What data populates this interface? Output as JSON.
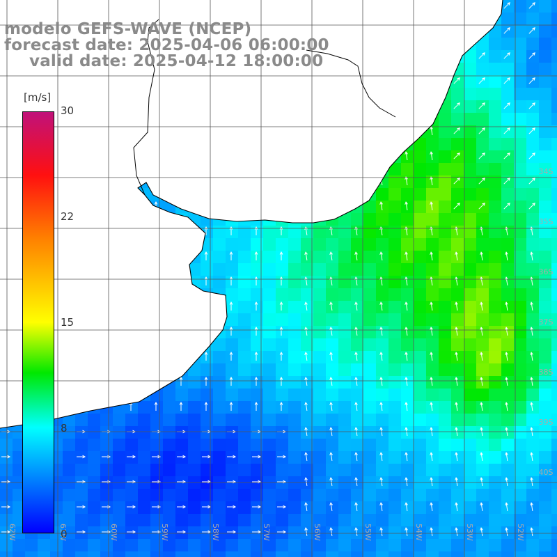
{
  "title": {
    "line1": "modelo GEFS-WAVE (NCEP)",
    "line2": "forecast date: 2025-04-06 06:00:00",
    "line3": "valid date: 2025-04-12 18:00:00"
  },
  "colorbar": {
    "unit": "[m/s]",
    "ticks": [
      "30",
      "22",
      "15",
      "8",
      "0"
    ],
    "tick_values": [
      30,
      22,
      15,
      8,
      0
    ],
    "min": 0,
    "max": 30,
    "colors": [
      "#0000ff",
      "#00ffff",
      "#00e800",
      "#ffff00",
      "#ff8000",
      "#ff1010",
      "#c0117a"
    ]
  },
  "map": {
    "lat_labels": [
      "34S",
      "35S",
      "36S",
      "37S",
      "38S",
      "39S",
      "40S"
    ],
    "lon_labels": [
      "62W",
      "61W",
      "60W",
      "59W",
      "58W",
      "57W",
      "56W",
      "55W",
      "54W",
      "53W",
      "52W"
    ],
    "land_color": "#ffffff",
    "grid_color": "#555555"
  }
}
